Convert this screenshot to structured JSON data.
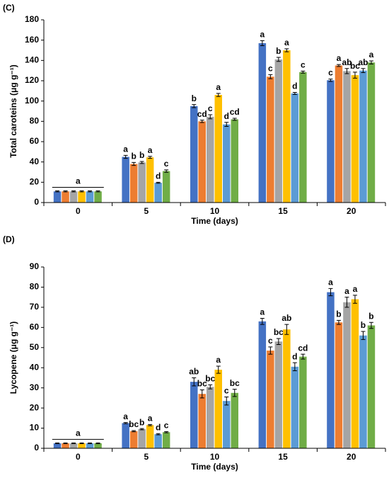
{
  "chart_data": [
    {
      "type": "bar",
      "panel": "(C)",
      "xlabel": "Time (days)",
      "ylabel": "Total caroteins (μg g⁻¹)",
      "categories": [
        "0",
        "5",
        "10",
        "15",
        "20"
      ],
      "ylim": [
        0,
        180
      ],
      "yticks": [
        0,
        20,
        40,
        60,
        80,
        100,
        120,
        140,
        160,
        180
      ],
      "group_letter": "a",
      "series": [
        {
          "color": "#4472c4",
          "values": [
            11,
            45,
            95,
            157,
            120.5
          ],
          "errors": [
            0.5,
            1.5,
            1.5,
            2.5,
            1.2
          ],
          "letters": [
            null,
            "a",
            "b",
            "a",
            "c"
          ]
        },
        {
          "color": "#ed7d31",
          "values": [
            11,
            38,
            80,
            124,
            135
          ],
          "errors": [
            0.5,
            1.5,
            1.2,
            2,
            1
          ],
          "letters": [
            null,
            "b",
            "cd",
            "c",
            "a"
          ]
        },
        {
          "color": "#a5a5a5",
          "values": [
            11,
            39.5,
            84.5,
            141,
            129.5
          ],
          "errors": [
            0.5,
            1,
            2,
            2,
            2.5
          ],
          "letters": [
            null,
            "b",
            "c",
            "b",
            "ab"
          ]
        },
        {
          "color": "#ffc000",
          "values": [
            11,
            44.5,
            106,
            150,
            125.5
          ],
          "errors": [
            0.5,
            1,
            1.5,
            1.5,
            3
          ],
          "letters": [
            null,
            "a",
            "a",
            "a",
            "bc"
          ]
        },
        {
          "color": "#5b9bd5",
          "values": [
            11,
            19.5,
            77,
            107.5,
            130
          ],
          "errors": [
            0.5,
            0.5,
            2,
            1,
            2
          ],
          "letters": [
            null,
            "d",
            "d",
            "d",
            "ab"
          ]
        },
        {
          "color": "#70ad47",
          "values": [
            11,
            31,
            82,
            128.5,
            138
          ],
          "errors": [
            0.5,
            1.2,
            1,
            1,
            1.5
          ],
          "letters": [
            null,
            "c",
            "cd",
            "c",
            "a"
          ]
        }
      ]
    },
    {
      "type": "bar",
      "panel": "(D)",
      "xlabel": "Time (days)",
      "ylabel": "Lycopene (μg g⁻¹)",
      "categories": [
        "0",
        "5",
        "10",
        "15",
        "20"
      ],
      "ylim": [
        0,
        90
      ],
      "yticks": [
        0,
        10,
        20,
        30,
        40,
        50,
        60,
        70,
        80,
        90
      ],
      "group_letter": "a",
      "series": [
        {
          "color": "#4472c4",
          "values": [
            2.5,
            12.5,
            33,
            63,
            77.5
          ],
          "errors": [
            0.2,
            0.3,
            2,
            1.5,
            1.8
          ],
          "letters": [
            null,
            "a",
            "ab",
            "a",
            "a"
          ]
        },
        {
          "color": "#ed7d31",
          "values": [
            2.5,
            8.5,
            27,
            48.5,
            62.5
          ],
          "errors": [
            0.2,
            0.3,
            2,
            1.8,
            1
          ],
          "letters": [
            null,
            "bc",
            "bc",
            "c",
            "b"
          ]
        },
        {
          "color": "#a5a5a5",
          "values": [
            2.5,
            9.5,
            30.5,
            53,
            72.5
          ],
          "errors": [
            0.2,
            0.3,
            1,
            1.5,
            2.5
          ],
          "letters": [
            null,
            "b",
            "bc",
            "bc",
            "a"
          ]
        },
        {
          "color": "#ffc000",
          "values": [
            2.5,
            11.5,
            39,
            59,
            74
          ],
          "errors": [
            0.2,
            0.3,
            1.8,
            2.5,
            2
          ],
          "letters": [
            null,
            "a",
            "a",
            "ab",
            "a"
          ]
        },
        {
          "color": "#5b9bd5",
          "values": [
            2.5,
            7,
            23.5,
            40.5,
            56
          ],
          "errors": [
            0.2,
            0.3,
            2,
            2,
            2
          ],
          "letters": [
            null,
            "d",
            "c",
            "d",
            "b"
          ]
        },
        {
          "color": "#70ad47",
          "values": [
            2.5,
            8,
            27.5,
            45.5,
            61
          ],
          "errors": [
            0.2,
            0.3,
            1.8,
            1.2,
            1.5
          ],
          "letters": [
            null,
            "c",
            "bc",
            "cd",
            "b"
          ]
        }
      ]
    }
  ]
}
